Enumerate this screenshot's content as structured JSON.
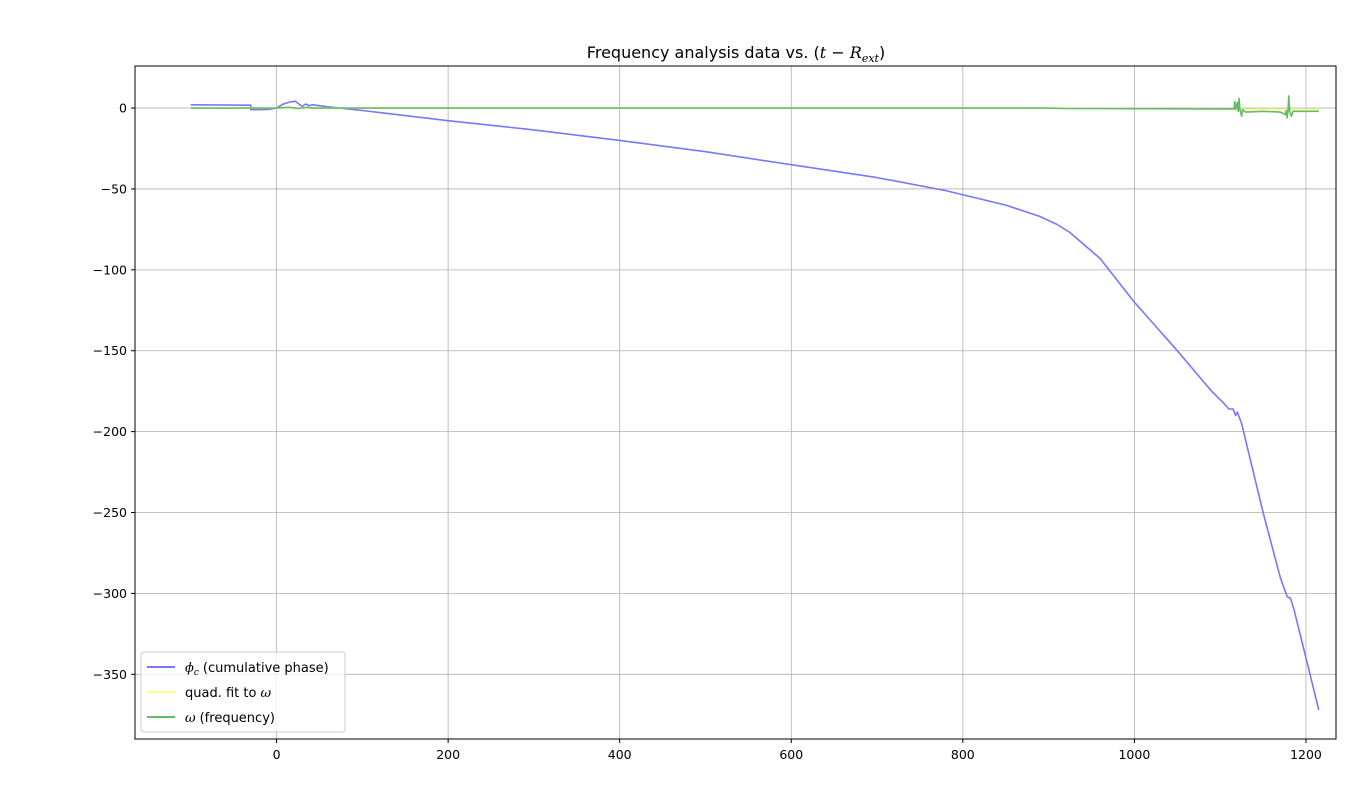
{
  "chart_data": {
    "type": "line",
    "title": {
      "prefix": "Frequency analysis data vs. (",
      "var_t": "t",
      "minus": " − ",
      "var_R": "R",
      "sub": "ext",
      "suffix": ")"
    },
    "xlabel": "",
    "ylabel": "",
    "xlim": [
      -165,
      1235
    ],
    "ylim": [
      -390,
      26
    ],
    "xticks": [
      0,
      200,
      400,
      600,
      800,
      1000,
      1200
    ],
    "yticks": [
      0,
      -50,
      -100,
      -150,
      -200,
      -250,
      -300,
      -350
    ],
    "tick_labels_x": [
      "0",
      "200",
      "400",
      "600",
      "800",
      "1000",
      "1200"
    ],
    "tick_labels_y": [
      "0",
      "−50",
      "−100",
      "−150",
      "−200",
      "−250",
      "−300",
      "−350"
    ],
    "grid": true,
    "legend_position": "lower-left",
    "series": [
      {
        "name": "(cumulative phase)",
        "symbol": "ϕ",
        "symbol_sub": "c",
        "color": "#7777ff",
        "points": [
          [
            -100,
            2
          ],
          [
            -30,
            1.8
          ],
          [
            -30,
            -1
          ],
          [
            -10,
            -0.8
          ],
          [
            0,
            0
          ],
          [
            8,
            2.5
          ],
          [
            16,
            3.8
          ],
          [
            22,
            4.2
          ],
          [
            26,
            2.5
          ],
          [
            30,
            1
          ],
          [
            34,
            2.5
          ],
          [
            38,
            1.5
          ],
          [
            42,
            2
          ],
          [
            60,
            0.8
          ],
          [
            100,
            -1.5
          ],
          [
            200,
            -7.8
          ],
          [
            300,
            -13.5
          ],
          [
            400,
            -20
          ],
          [
            500,
            -27
          ],
          [
            600,
            -35
          ],
          [
            700,
            -43
          ],
          [
            780,
            -51
          ],
          [
            850,
            -60
          ],
          [
            890,
            -67
          ],
          [
            910,
            -72
          ],
          [
            925,
            -77
          ],
          [
            960,
            -93
          ],
          [
            1000,
            -120
          ],
          [
            1050,
            -150
          ],
          [
            1090,
            -175
          ],
          [
            1105,
            -183
          ],
          [
            1110,
            -186
          ],
          [
            1115,
            -186
          ],
          [
            1118,
            -190
          ],
          [
            1120,
            -188
          ],
          [
            1125,
            -195
          ],
          [
            1150,
            -250
          ],
          [
            1170,
            -290
          ],
          [
            1178,
            -302
          ],
          [
            1182,
            -303
          ],
          [
            1186,
            -310
          ],
          [
            1200,
            -340
          ],
          [
            1215,
            -372
          ]
        ]
      },
      {
        "name": "quad. fit to",
        "symbol": "ω",
        "color": "#ffff80",
        "points": [
          [
            -100,
            0
          ],
          [
            200,
            0
          ],
          [
            500,
            0
          ],
          [
            800,
            0
          ],
          [
            920,
            -0.2
          ],
          [
            1000,
            -0.4
          ],
          [
            1100,
            -0.6
          ],
          [
            1150,
            -0.8
          ],
          [
            1215,
            -1.2
          ]
        ]
      },
      {
        "name": "(frequency)",
        "symbol": "ω",
        "color": "#66bb66",
        "points": [
          [
            -100,
            0
          ],
          [
            0,
            0
          ],
          [
            15,
            0.5
          ],
          [
            25,
            -0.3
          ],
          [
            35,
            0.4
          ],
          [
            45,
            0
          ],
          [
            500,
            0
          ],
          [
            900,
            0
          ],
          [
            920,
            -0.3
          ],
          [
            1100,
            -0.5
          ],
          [
            1116,
            -0.5
          ],
          [
            1117,
            4
          ],
          [
            1118,
            -1
          ],
          [
            1120,
            3.5
          ],
          [
            1121,
            -2
          ],
          [
            1122,
            6
          ],
          [
            1123,
            -1
          ],
          [
            1125,
            -5
          ],
          [
            1126,
            -1
          ],
          [
            1130,
            -2.5
          ],
          [
            1150,
            -2
          ],
          [
            1170,
            -2.5
          ],
          [
            1176,
            -4
          ],
          [
            1177,
            -1.5
          ],
          [
            1178,
            -6
          ],
          [
            1179,
            -2
          ],
          [
            1180,
            7.5
          ],
          [
            1181,
            -2
          ],
          [
            1183,
            -5
          ],
          [
            1185,
            -2
          ],
          [
            1215,
            -2
          ]
        ]
      }
    ]
  }
}
